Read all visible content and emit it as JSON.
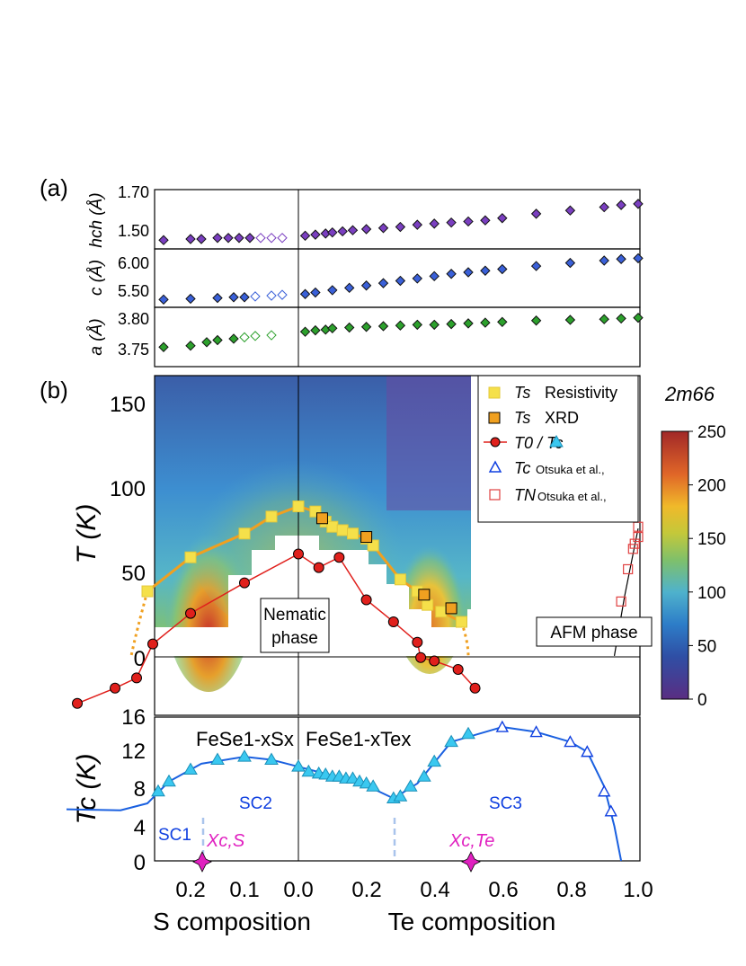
{
  "panel_labels": {
    "a": "(a)",
    "b": "(b)"
  },
  "x_axis": {
    "s_ticks": [
      "0.2",
      "0.1",
      "0.0"
    ],
    "te_ticks": [
      "0.2",
      "0.4",
      "0.6",
      "0.8",
      "1.0"
    ],
    "s_label": "S composition",
    "te_label": "Te composition"
  },
  "colorbar": {
    "title": "2m66",
    "ticks": [
      "0",
      "50",
      "100",
      "150",
      "200",
      "250"
    ],
    "range": [
      0,
      250
    ]
  },
  "annotations": {
    "nematic_line1": "Nematic",
    "nematic_line2": "phase",
    "afm": "AFM phase",
    "fese_s": "FeSe1-xSx",
    "fese_te": "FeSe1-xTex",
    "sc1": "SC1",
    "sc2": "SC2",
    "sc3": "SC3",
    "xcs": "Xc,S",
    "xcte": "Xc,Te"
  },
  "legend": [
    {
      "symbol": "Ts",
      "text": "Resistivity",
      "color": "#f5e04a"
    },
    {
      "symbol": "Ts",
      "text": "XRD",
      "color": "#f0a020"
    },
    {
      "symbol": "T0 / Tc",
      "text": "",
      "color": "#e0201c"
    },
    {
      "symbol": "Tc",
      "text": "Otsuka et al.,",
      "color": "#1040e0"
    },
    {
      "symbol": "TN",
      "text": "Otsuka et al.,",
      "color": "#e04040"
    }
  ],
  "chart_data": [
    {
      "type": "scatter",
      "panel": "a-top",
      "ylabel": "hch (Å)",
      "yticks": [
        "1.50",
        "1.70"
      ],
      "ylim": [
        1.44,
        1.71
      ],
      "series": [
        {
          "name": "S side",
          "color": "#7a3fc0",
          "x": [
            -0.4,
            -0.3,
            -0.25,
            -0.2,
            -0.18,
            -0.15,
            -0.13,
            -0.11,
            -0.09,
            -0.07,
            -0.05,
            -0.03
          ],
          "y": [
            1.47,
            1.48,
            1.48,
            1.485,
            1.485,
            1.49,
            1.49,
            1.49,
            1.49,
            1.49,
            1.49,
            1.49
          ]
        },
        {
          "name": "Te side",
          "color": "#7a3fc0",
          "x": [
            0.02,
            0.05,
            0.08,
            0.1,
            0.13,
            0.16,
            0.2,
            0.25,
            0.3,
            0.35,
            0.4,
            0.45,
            0.5,
            0.55,
            0.6,
            0.7,
            0.8,
            0.9,
            0.95,
            1.0
          ],
          "y": [
            1.5,
            1.505,
            1.51,
            1.515,
            1.52,
            1.525,
            1.53,
            1.535,
            1.54,
            1.55,
            1.555,
            1.56,
            1.565,
            1.57,
            1.58,
            1.6,
            1.615,
            1.63,
            1.64,
            1.645
          ]
        }
      ]
    },
    {
      "type": "scatter",
      "panel": "a-middle",
      "ylabel": "c (Å)",
      "yticks": [
        "5.50",
        "6.00"
      ],
      "ylim": [
        5.35,
        6.1
      ],
      "series": [
        {
          "name": "S side",
          "color": "#3a60d8",
          "x": [
            -0.4,
            -0.3,
            -0.25,
            -0.2,
            -0.15,
            -0.12,
            -0.1,
            -0.08,
            -0.05,
            -0.03
          ],
          "y": [
            5.4,
            5.43,
            5.45,
            5.46,
            5.47,
            5.48,
            5.48,
            5.49,
            5.5,
            5.51
          ]
        },
        {
          "name": "Te side",
          "color": "#3a60d8",
          "x": [
            0.02,
            0.05,
            0.1,
            0.15,
            0.2,
            0.25,
            0.3,
            0.35,
            0.4,
            0.45,
            0.5,
            0.55,
            0.6,
            0.7,
            0.8,
            0.9,
            0.95,
            1.0
          ],
          "y": [
            5.52,
            5.54,
            5.57,
            5.6,
            5.63,
            5.66,
            5.69,
            5.72,
            5.75,
            5.78,
            5.8,
            5.82,
            5.84,
            5.88,
            5.92,
            5.95,
            5.97,
            5.98
          ]
        }
      ]
    },
    {
      "type": "scatter",
      "panel": "a-bottom",
      "ylabel": "a (Å)",
      "yticks": [
        "3.75",
        "3.80"
      ],
      "ylim": [
        3.73,
        3.815
      ],
      "series": [
        {
          "name": "S side",
          "color": "#2ca02c",
          "x": [
            -0.42,
            -0.3,
            -0.25,
            -0.2,
            -0.17,
            -0.15,
            -0.12,
            -0.1,
            -0.08,
            -0.05
          ],
          "y": [
            3.743,
            3.755,
            3.758,
            3.76,
            3.765,
            3.768,
            3.77,
            3.772,
            3.774,
            3.775
          ]
        },
        {
          "name": "Te side",
          "color": "#2ca02c",
          "x": [
            0.02,
            0.05,
            0.08,
            0.1,
            0.15,
            0.2,
            0.25,
            0.3,
            0.35,
            0.4,
            0.45,
            0.5,
            0.55,
            0.6,
            0.7,
            0.8,
            0.9,
            0.95,
            1.0
          ],
          "y": [
            3.78,
            3.782,
            3.783,
            3.785,
            3.786,
            3.787,
            3.788,
            3.789,
            3.79,
            3.79,
            3.791,
            3.792,
            3.793,
            3.794,
            3.796,
            3.797,
            3.798,
            3.799,
            3.8
          ]
        }
      ]
    },
    {
      "type": "heatmap",
      "panel": "b",
      "xlabel": "",
      "ylabel": "T (K)",
      "yticks": [
        "0",
        "50",
        "100",
        "150"
      ],
      "ylim": [
        -35,
        165
      ],
      "bottom_label": "16",
      "series": [
        {
          "name": "Ts Resistivity",
          "color": "#f5e04a",
          "x": [
            -0.28,
            -0.2,
            -0.1,
            -0.05,
            0.0,
            0.05,
            0.08,
            0.1,
            0.13,
            0.16,
            0.2,
            0.22,
            0.3,
            0.35,
            0.38,
            0.42,
            0.48
          ],
          "y": [
            38,
            58,
            72,
            82,
            88,
            85,
            79,
            76,
            74,
            72,
            69,
            65,
            45,
            38,
            30,
            26,
            20
          ]
        },
        {
          "name": "Ts XRD",
          "color": "#f0a020",
          "x": [
            0.07,
            0.2,
            0.37,
            0.45
          ],
          "y": [
            81,
            70,
            36,
            28
          ]
        },
        {
          "name": "T0",
          "color": "#e0201c",
          "x": [
            -0.41,
            -0.34,
            -0.3,
            -0.27,
            -0.2,
            -0.1,
            0.0,
            0.06,
            0.12,
            0.2,
            0.28,
            0.35,
            0.36,
            0.4,
            0.47,
            0.52
          ],
          "y": [
            -28,
            -19,
            -13,
            7,
            25,
            43,
            60,
            52,
            58,
            33,
            20,
            8,
            -1,
            -3,
            -8,
            -19
          ]
        },
        {
          "name": "TN Otsuka et al.,",
          "color": "#e04040",
          "x": [
            0.95,
            0.97,
            0.985,
            0.99,
            1.0,
            1.0
          ],
          "y": [
            32,
            51,
            63,
            66,
            70,
            76
          ]
        }
      ]
    },
    {
      "type": "line",
      "panel": "c",
      "ylabel": "Tc (K)",
      "yticks": [
        "0",
        "4",
        "8",
        "12"
      ],
      "ylim": [
        0,
        14.5
      ],
      "series": [
        {
          "name": "Tc",
          "color": "#3ac8f0",
          "x": [
            -0.41,
            -0.33,
            -0.28,
            -0.26,
            -0.24,
            -0.2,
            -0.15,
            -0.1,
            -0.05,
            0.0,
            0.03,
            0.06,
            0.08,
            0.1,
            0.12,
            0.14,
            0.16,
            0.18,
            0.2,
            0.22,
            0.28,
            0.3,
            0.33,
            0.37,
            0.4,
            0.45,
            0.5
          ],
          "y": [
            5.2,
            5.1,
            5.8,
            7.0,
            8.0,
            9.2,
            10.2,
            10.5,
            10.2,
            9.5,
            9.0,
            8.8,
            8.7,
            8.5,
            8.5,
            8.3,
            8.3,
            8.0,
            7.8,
            7.5,
            6.3,
            6.5,
            7.5,
            8.5,
            10.0,
            12.0,
            12.8
          ]
        },
        {
          "name": "Tc Otsuka et al.,",
          "color": "#1040e0",
          "x": [
            0.6,
            0.7,
            0.8,
            0.85,
            0.9,
            0.92
          ],
          "y": [
            13.5,
            13.0,
            12.0,
            11.0,
            7.0,
            5.0
          ]
        }
      ]
    }
  ]
}
